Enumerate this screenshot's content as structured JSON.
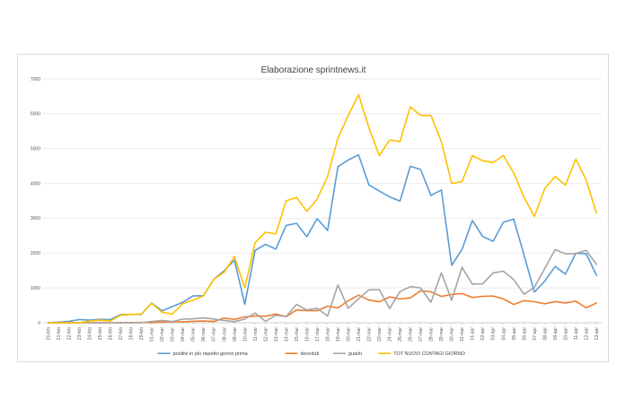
{
  "chart_data": {
    "type": "line",
    "title": "Elaborazione sprintnews.it",
    "xlabel": "",
    "ylabel": "",
    "ylim": [
      0,
      7000
    ],
    "yticks": [
      0,
      1000,
      2000,
      3000,
      4000,
      5000,
      6000,
      7000
    ],
    "grid": true,
    "legend_position": "bottom",
    "categories": [
      "20-feb",
      "21-feb",
      "22-feb",
      "23-feb",
      "24-feb",
      "25-feb",
      "26-feb",
      "27-feb",
      "28-feb",
      "29-feb",
      "01-mar",
      "02-mar",
      "03-mar",
      "04-mar",
      "05-mar",
      "06-mar",
      "07-mar",
      "08-mar",
      "09-mar",
      "10-mar",
      "11-mar",
      "12-mar",
      "13-mar",
      "14-mar",
      "15-mar",
      "16-mar",
      "17-mar",
      "18-mar",
      "19-mar",
      "20-mar",
      "21-mar",
      "22-mar",
      "23-mar",
      "24-mar",
      "25-mar",
      "26-mar",
      "27-mar",
      "28-mar",
      "29-mar",
      "30-mar",
      "31-mar",
      "01-apr",
      "02-apr",
      "03-apr",
      "04-apr",
      "05-apr",
      "06-apr",
      "07-apr",
      "08-apr",
      "09-apr",
      "10-apr",
      "11-apr",
      "12-apr",
      "13-apr"
    ],
    "series": [
      {
        "name": "positivi in più rispetto giorno prima",
        "color": "#5b9bd5",
        "values": [
          3,
          17,
          42,
          93,
          74,
          97,
          88,
          233,
          240,
          239,
          566,
          342,
          466,
          587,
          769,
          778,
          1247,
          1492,
          1797,
          529,
          2076,
          2249,
          2116,
          2795,
          2853,
          2470,
          2989,
          2648,
          4480,
          4670,
          4821,
          3957,
          3780,
          3612,
          3491,
          4492,
          4401,
          3651,
          3815,
          1648,
          2107,
          2937,
          2477,
          2339,
          2886,
          2972,
          1941,
          880,
          1195,
          1615,
          1396,
          1996,
          1984,
          1363
        ]
      },
      {
        "name": "deceduti",
        "color": "#ed7d31",
        "values": [
          1,
          1,
          1,
          4,
          3,
          5,
          1,
          5,
          4,
          8,
          5,
          18,
          27,
          28,
          41,
          49,
          36,
          133,
          97,
          168,
          196,
          189,
          250,
          175,
          368,
          349,
          345,
          475,
          427,
          627,
          793,
          651,
          601,
          743,
          683,
          712,
          919,
          889,
          756,
          812,
          837,
          727,
          760,
          766,
          681,
          525,
          636,
          604,
          542,
          610,
          570,
          619,
          431,
          566
        ]
      },
      {
        "name": "guariti",
        "color": "#a5a5a5",
        "values": [
          0,
          0,
          0,
          0,
          0,
          0,
          2,
          0,
          0,
          0,
          37,
          66,
          33,
          102,
          114,
          138,
          109,
          66,
          33,
          102,
          280,
          41,
          213,
          181,
          527,
          369,
          414,
          192,
          1084,
          415,
          689,
          943,
          952,
          408,
          894,
          1036,
          999,
          589,
          1434,
          646,
          1590,
          1109,
          1118,
          1431,
          1480,
          1238,
          819,
          1022,
          1555,
          2099,
          1979,
          1985,
          2079,
          1677
        ]
      },
      {
        "name": "TOT NUOVI CONTAGI GIORNO",
        "color": "#ffc000",
        "values": [
          0,
          0,
          0,
          0,
          50,
          75,
          50,
          220,
          240,
          250,
          560,
          300,
          250,
          550,
          650,
          770,
          1250,
          1450,
          1900,
          1000,
          2300,
          2600,
          2550,
          3500,
          3600,
          3200,
          3550,
          4200,
          5300,
          5950,
          6550,
          5600,
          4800,
          5250,
          5200,
          6200,
          5950,
          5950,
          5200,
          4000,
          4050,
          4800,
          4650,
          4600,
          4800,
          4300,
          3600,
          3050,
          3850,
          4200,
          3950,
          4700,
          4100,
          3150
        ]
      }
    ]
  }
}
